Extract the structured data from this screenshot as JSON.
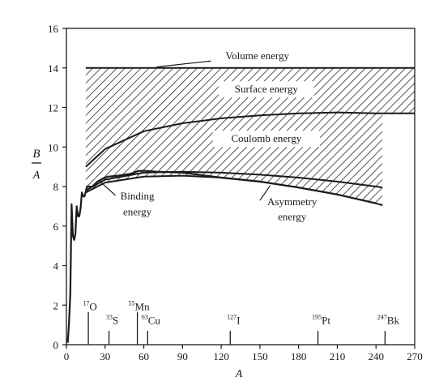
{
  "chart_data": {
    "type": "line",
    "title": "",
    "xlabel": "A",
    "ylabel": "B",
    "ylabel_den": "A",
    "xlim": [
      0,
      270
    ],
    "ylim": [
      0,
      16
    ],
    "x_ticks": [
      0,
      30,
      60,
      90,
      120,
      150,
      180,
      210,
      240,
      270
    ],
    "y_ticks": [
      0,
      2,
      4,
      6,
      8,
      10,
      12,
      14,
      16
    ],
    "grid": false,
    "legend": "none",
    "colors": {
      "line": "#1a1a1a",
      "hatch": "#2a2a2a",
      "background": "#ffffff"
    },
    "series": [
      {
        "name": "Volume energy",
        "x": [
          15,
          270
        ],
        "y": [
          14.0,
          14.0
        ]
      },
      {
        "name": "Surface energy",
        "x": [
          15,
          30,
          60,
          90,
          120,
          150,
          180,
          210,
          240,
          270
        ],
        "y": [
          9.0,
          9.9,
          10.8,
          11.2,
          11.45,
          11.6,
          11.7,
          11.75,
          11.7,
          11.7
        ]
      },
      {
        "name": "Coulomb energy",
        "x": [
          15,
          30,
          60,
          90,
          120,
          150,
          180,
          210,
          240,
          245
        ],
        "y": [
          7.8,
          8.35,
          8.7,
          8.75,
          8.7,
          8.6,
          8.45,
          8.25,
          8.0,
          7.95
        ]
      },
      {
        "name": "Asymmetry energy",
        "x": [
          15,
          30,
          60,
          90,
          120,
          150,
          180,
          210,
          240,
          245
        ],
        "y": [
          7.7,
          8.2,
          8.5,
          8.55,
          8.45,
          8.25,
          7.95,
          7.6,
          7.15,
          7.05
        ]
      },
      {
        "name": "Binding energy",
        "x": [
          1,
          2,
          3,
          4,
          5,
          6,
          7,
          8,
          9,
          10,
          11,
          12,
          13,
          14,
          16,
          20,
          24,
          28,
          32,
          40,
          50,
          56,
          62,
          70,
          90,
          120,
          150,
          180,
          210,
          240
        ],
        "y": [
          0.1,
          1.1,
          2.6,
          7.1,
          5.5,
          5.3,
          5.6,
          7.0,
          6.5,
          6.5,
          6.9,
          7.7,
          7.5,
          7.5,
          8.0,
          8.0,
          8.25,
          8.4,
          8.5,
          8.55,
          8.65,
          8.79,
          8.79,
          8.75,
          8.7,
          8.45,
          8.25,
          7.95,
          7.6,
          7.15
        ]
      }
    ],
    "annotations": [
      {
        "text": "Volume energy",
        "x": 148,
        "y": 14.45
      },
      {
        "text": "Surface energy",
        "x": 155,
        "y": 12.75
      },
      {
        "text": "Coulomb energy",
        "x": 155,
        "y": 10.25
      },
      {
        "text": "Binding",
        "x": 55,
        "y": 7.35
      },
      {
        "text": "energy",
        "x": 55,
        "y": 6.55
      },
      {
        "text": "Asymmetry",
        "x": 175,
        "y": 7.05
      },
      {
        "text": "energy",
        "x": 175,
        "y": 6.3
      }
    ],
    "nuclide_markers": [
      {
        "mass": "17",
        "symbol": "O",
        "x": 17,
        "stem_top": 1.65,
        "label_y": 1.75
      },
      {
        "mass": "33",
        "symbol": "S",
        "x": 33,
        "stem_top": 0.7,
        "label_y": 1.05
      },
      {
        "mass": "55",
        "symbol": "Mn",
        "x": 55,
        "stem_top": 1.65,
        "label_y": 1.75
      },
      {
        "mass": "63",
        "symbol": "Cu",
        "x": 63,
        "stem_top": 0.7,
        "label_y": 1.05
      },
      {
        "mass": "127",
        "symbol": "I",
        "x": 127,
        "stem_top": 0.7,
        "label_y": 1.05
      },
      {
        "mass": "195",
        "symbol": "Pt",
        "x": 195,
        "stem_top": 0.7,
        "label_y": 1.05
      },
      {
        "mass": "247",
        "symbol": "Bk",
        "x": 247,
        "stem_top": 0.7,
        "label_y": 1.05
      }
    ]
  }
}
